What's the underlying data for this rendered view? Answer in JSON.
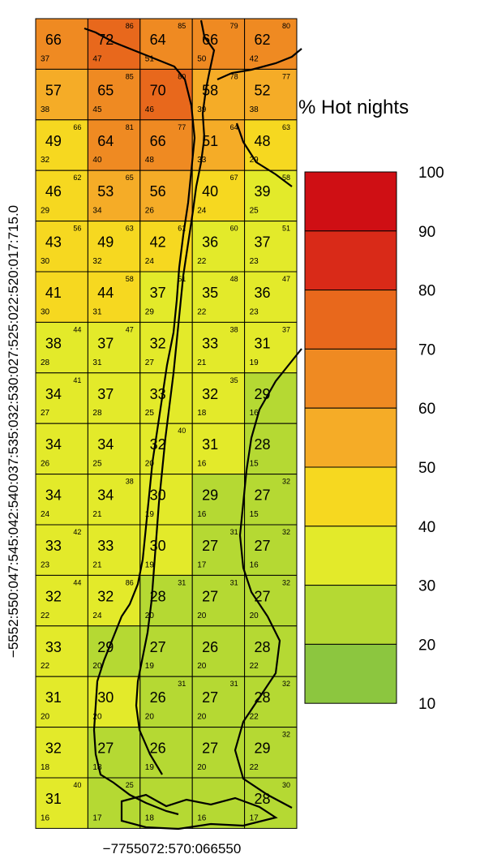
{
  "figure": {
    "legend_title": "% Hot nights",
    "y_axis_text": "−5552:550:047:545:042:540:037:535:032:530:027:525:022:520:017:715.0",
    "x_axis_text": "−7755072:570:066550",
    "colors": {
      "10-20": "#8cc63f",
      "20-30": "#b5d933",
      "30-40": "#e3ea2a",
      "40-50": "#f6d820",
      "50-60": "#f5ac27",
      "60-70": "#ef8a22",
      "70-80": "#e8681c",
      "80-90": "#d92a18",
      "90-100": "#cf0f14"
    },
    "map_features": [
      "coastline-chile",
      "andes-border",
      "border-argentina",
      "tierra-del-fuego"
    ]
  },
  "chart_data": {
    "type": "heatmap",
    "title": "",
    "legend_title": "% Hot nights",
    "colorbar": {
      "ticks": [
        100,
        90,
        80,
        70,
        60,
        50,
        40,
        30,
        20,
        10
      ],
      "min": 10,
      "max": 100
    },
    "rows": [
      {
        "big": [
          66,
          72,
          64,
          66,
          62
        ],
        "small": [
          37,
          47,
          51,
          50,
          42
        ],
        "max": [
          null,
          86,
          85,
          79,
          80
        ]
      },
      {
        "big": [
          57,
          65,
          70,
          58,
          52
        ],
        "small": [
          38,
          45,
          46,
          39,
          38
        ],
        "max": [
          null,
          85,
          80,
          78,
          77
        ]
      },
      {
        "big": [
          49,
          64,
          66,
          51,
          48
        ],
        "small": [
          32,
          40,
          48,
          33,
          29
        ],
        "max": [
          66,
          81,
          77,
          64,
          63
        ]
      },
      {
        "big": [
          46,
          53,
          56,
          40,
          39
        ],
        "small": [
          29,
          34,
          26,
          24,
          25
        ],
        "max": [
          62,
          65,
          null,
          67,
          58
        ]
      },
      {
        "big": [
          43,
          49,
          42,
          36,
          37
        ],
        "small": [
          30,
          32,
          24,
          22,
          23
        ],
        "max": [
          56,
          63,
          61,
          60,
          51
        ]
      },
      {
        "big": [
          41,
          44,
          37,
          35,
          36
        ],
        "small": [
          30,
          31,
          29,
          22,
          23
        ],
        "max": [
          null,
          58,
          51,
          48,
          47
        ]
      },
      {
        "big": [
          38,
          37,
          32,
          33,
          31
        ],
        "small": [
          28,
          31,
          27,
          21,
          19
        ],
        "max": [
          44,
          47,
          null,
          38,
          37
        ]
      },
      {
        "big": [
          34,
          37,
          33,
          32,
          29
        ],
        "small": [
          27,
          28,
          25,
          18,
          16
        ],
        "max": [
          41,
          null,
          null,
          35,
          null
        ]
      },
      {
        "big": [
          34,
          34,
          32,
          31,
          28
        ],
        "small": [
          26,
          25,
          20,
          16,
          15
        ],
        "max": [
          null,
          null,
          40,
          null,
          null
        ]
      },
      {
        "big": [
          34,
          34,
          30,
          29,
          27
        ],
        "small": [
          24,
          21,
          19,
          16,
          15
        ],
        "max": [
          null,
          38,
          null,
          null,
          32
        ]
      },
      {
        "big": [
          33,
          33,
          30,
          27,
          27
        ],
        "small": [
          23,
          21,
          19,
          17,
          16
        ],
        "max": [
          42,
          null,
          null,
          31,
          32
        ]
      },
      {
        "big": [
          32,
          32,
          28,
          27,
          27
        ],
        "small": [
          22,
          24,
          20,
          20,
          20
        ],
        "max": [
          44,
          86,
          31,
          31,
          32
        ]
      },
      {
        "big": [
          33,
          29,
          27,
          26,
          28
        ],
        "small": [
          22,
          20,
          19,
          20,
          22
        ],
        "max": [
          null,
          null,
          null,
          null,
          null
        ]
      },
      {
        "big": [
          31,
          30,
          26,
          27,
          28
        ],
        "small": [
          20,
          20,
          20,
          20,
          22
        ],
        "max": [
          null,
          null,
          31,
          31,
          32
        ]
      },
      {
        "big": [
          32,
          27,
          26,
          27,
          29
        ],
        "small": [
          18,
          18,
          19,
          20,
          22
        ],
        "max": [
          null,
          null,
          null,
          null,
          32
        ]
      },
      {
        "big": [
          31,
          null,
          null,
          null,
          28
        ],
        "small": [
          16,
          17,
          18,
          16,
          17
        ],
        "max": [
          40,
          25,
          null,
          null,
          30
        ]
      }
    ]
  }
}
